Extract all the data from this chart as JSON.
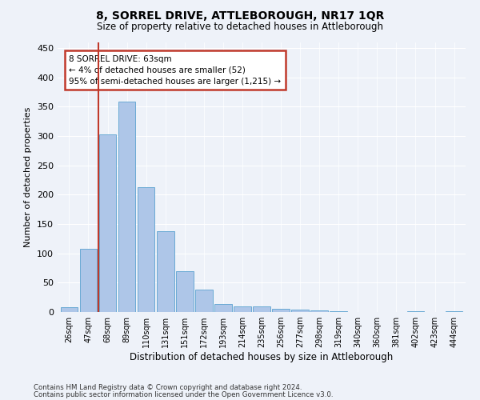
{
  "title": "8, SORREL DRIVE, ATTLEBOROUGH, NR17 1QR",
  "subtitle": "Size of property relative to detached houses in Attleborough",
  "xlabel": "Distribution of detached houses by size in Attleborough",
  "ylabel": "Number of detached properties",
  "footnote1": "Contains HM Land Registry data © Crown copyright and database right 2024.",
  "footnote2": "Contains public sector information licensed under the Open Government Licence v3.0.",
  "annotation_title": "8 SORREL DRIVE: 63sqm",
  "annotation_line1": "← 4% of detached houses are smaller (52)",
  "annotation_line2": "95% of semi-detached houses are larger (1,215) →",
  "bar_labels": [
    "26sqm",
    "47sqm",
    "68sqm",
    "89sqm",
    "110sqm",
    "131sqm",
    "151sqm",
    "172sqm",
    "193sqm",
    "214sqm",
    "235sqm",
    "256sqm",
    "277sqm",
    "298sqm",
    "319sqm",
    "340sqm",
    "360sqm",
    "381sqm",
    "402sqm",
    "423sqm",
    "444sqm"
  ],
  "bar_values": [
    8,
    108,
    302,
    358,
    212,
    137,
    69,
    38,
    13,
    10,
    10,
    6,
    4,
    3,
    1,
    0,
    0,
    0,
    2,
    0,
    2
  ],
  "bar_color": "#aec6e8",
  "bar_edge_color": "#6aaad4",
  "marker_color": "#c0392b",
  "ylim": [
    0,
    460
  ],
  "yticks": [
    0,
    50,
    100,
    150,
    200,
    250,
    300,
    350,
    400,
    450
  ],
  "annotation_box_color": "#c0392b",
  "bg_color": "#eef2f9",
  "plot_bg_color": "#eef2f9"
}
